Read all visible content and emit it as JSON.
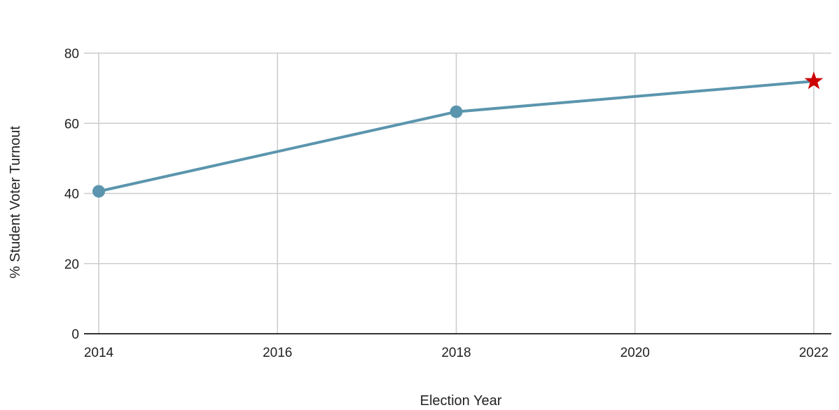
{
  "chart_data": {
    "type": "line",
    "title": "",
    "xlabel": "Election Year",
    "ylabel": "% Student Voter Turnout",
    "xlim": [
      2014,
      2022
    ],
    "ylim": [
      0,
      80
    ],
    "x_ticks": [
      "2014",
      "2016",
      "2018",
      "2020",
      "2022"
    ],
    "y_ticks": [
      "0",
      "20",
      "40",
      "60",
      "80"
    ],
    "grid": true,
    "legend": "none",
    "series": [
      {
        "x": [
          2014,
          2018,
          2022
        ],
        "y": [
          40.6,
          63.3,
          72
        ],
        "color": "#5b95ad",
        "markers": [
          "circle",
          "circle",
          "star"
        ]
      }
    ],
    "highlight_color": "#cc0000",
    "grid_color": "#cccccc",
    "axis_color": "#333333"
  }
}
